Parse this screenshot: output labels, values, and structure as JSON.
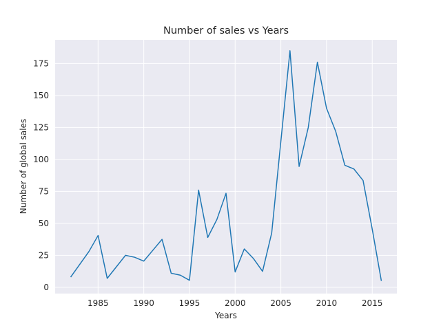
{
  "chart_data": {
    "type": "line",
    "title": "Number of sales vs Years",
    "xlabel": "Years",
    "ylabel": "Number of global sales",
    "xlim": [
      1980.3,
      2017.7
    ],
    "ylim": [
      -4.9,
      193.5
    ],
    "xticks": [
      1985,
      1990,
      1995,
      2000,
      2005,
      2010,
      2015
    ],
    "yticks": [
      0,
      25,
      50,
      75,
      100,
      125,
      150,
      175
    ],
    "grid": true,
    "legend": "none",
    "colors": {
      "background": "#eaeaf2",
      "grid": "#ffffff",
      "line": "#1f77b4"
    },
    "series": [
      {
        "x": [
          1982,
          1983,
          1984,
          1985,
          1986,
          1987,
          1988,
          1989,
          1990,
          1991,
          1992,
          1993,
          1994,
          1995,
          1996,
          1997,
          1998,
          1999,
          2000,
          2001,
          2002,
          2003,
          2004,
          2005,
          2006,
          2007,
          2008,
          2009,
          2010,
          2011,
          2012,
          2013,
          2014,
          2015,
          2016
        ],
        "values": [
          8,
          18,
          28,
          40.5,
          7,
          16,
          25,
          23.5,
          20.5,
          29,
          37.5,
          11,
          9.5,
          5.5,
          76,
          39,
          53,
          73.5,
          12,
          30,
          22.5,
          12.5,
          42.5,
          114,
          185,
          94.5,
          125,
          176,
          140,
          122,
          95.5,
          92.5,
          83.5,
          45.5,
          5
        ]
      }
    ]
  }
}
